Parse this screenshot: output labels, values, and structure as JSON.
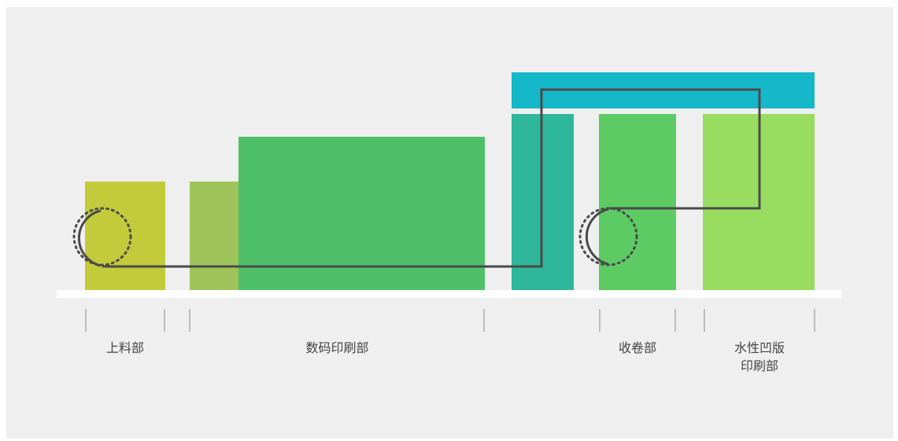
{
  "colors": {
    "background": "#efefef",
    "feed": "#c3cb3a",
    "digital_light": "#9ec459",
    "digital_main": "#50bf6a",
    "teal": "#2fb79b",
    "top_bar": "#15b8c9",
    "rewind": "#5dcb64",
    "flexo": "#98dd60",
    "path": "#4a4a4a",
    "tick": "#999999",
    "floor": "#ffffff"
  },
  "labels": {
    "feed": "上料部",
    "digital": "数码印刷部",
    "rewind": "收卷部",
    "flexo_line1": "水性凹版",
    "flexo_line2": "印刷部"
  }
}
